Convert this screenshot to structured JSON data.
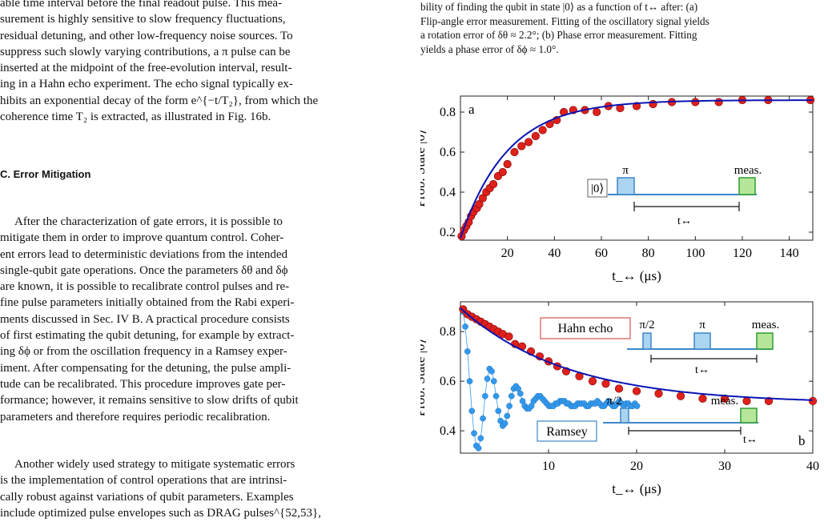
{
  "left_column": {
    "para_top": [
      "able time interval before the final readout pulse. This mea-",
      "surement is highly sensitive to slow frequency fluctuations,",
      "residual detuning, and other low-frequency noise sources. To",
      "suppress such slowly varying contributions, a π pulse can be",
      "inserted at the midpoint of the free-evolution interval, result-",
      "ing in a Hahn echo experiment. The echo signal typically ex-",
      "hibits an exponential decay of the form e^{−t/T₂}, from which the",
      "coherence time T₂ is extracted, as illustrated in Fig. 16b."
    ],
    "section_heading": "C.  Error Mitigation",
    "para_mitigation": [
      "After the characterization of gate errors, it is possible to",
      "mitigate them in order to improve quantum control. Coher-",
      "ent errors lead to deterministic deviations from the intended",
      "single-qubit gate operations. Once the parameters δθ and δϕ",
      "are known, it is possible to recalibrate control pulses and re-",
      "fine pulse parameters initially obtained from the Rabi experi-",
      "ments discussed in Sec. IV B. A practical procedure consists",
      "of first estimating the qubit detuning, for example by extract-",
      "ing δϕ or from the oscillation frequency in a Ramsey exper-",
      "iment. After compensating for the detuning, the pulse ampli-",
      "tude can be recalibrated. This procedure improves gate per-",
      "formance; however, it remains sensitive to slow drifts of qubit",
      "parameters and therefore requires periodic recalibration."
    ],
    "para_strategy": [
      "Another widely used strategy to mitigate systematic errors",
      "is the implementation of control operations that are intrinsi-",
      "cally robust against variations of qubit parameters. Examples",
      "include optimized pulse envelopes such as DRAG pulses^{52,53},"
    ]
  },
  "caption": [
    "bility of finding the qubit in state |0⟩ as a function of t↔ after: (a)",
    "Flip-angle error measurement. Fitting of the oscillatory signal yields",
    "a rotation error of δθ ≈ 2.2°; (b) Phase error measurement. Fitting",
    "yields a phase error of δϕ ≈ 1.0°."
  ],
  "colors": {
    "data_red": "#e0201a",
    "fit_blue": "#0a14b4",
    "ramsey_blue": "#3399ee",
    "pulse_blue": "#aad4f0",
    "pulse_edge": "#3d87c9",
    "pulse_green": "#b6e69a",
    "pulse_green_edge": "#2f9e2f",
    "hahn_box_edge": "#d9534f",
    "ramsey_box_edge": "#3d87c9"
  },
  "chart_data": [
    {
      "type": "scatter",
      "panel_label": "a",
      "title": "",
      "xlabel": "t_↔ (μs)",
      "ylabel": "Prob. State |0⟩",
      "xlim": [
        0,
        150
      ],
      "ylim": [
        0.16,
        0.88
      ],
      "xticks": [
        20,
        40,
        60,
        80,
        100,
        120,
        140
      ],
      "yticks": [
        0.2,
        0.4,
        0.6,
        0.8
      ],
      "grid": false,
      "series": [
        {
          "x": [
            0.5,
            1.5,
            2.5,
            3.5,
            4.5,
            5.5,
            7,
            8,
            9.5,
            11,
            12.5,
            14,
            16,
            18,
            20,
            23,
            26,
            29,
            32,
            35,
            38,
            41,
            44,
            48,
            53,
            58,
            63,
            68,
            75,
            82,
            90,
            100,
            110,
            120,
            131,
            149
          ],
          "values": [
            0.18,
            0.21,
            0.23,
            0.25,
            0.28,
            0.3,
            0.32,
            0.34,
            0.37,
            0.4,
            0.42,
            0.44,
            0.48,
            0.5,
            0.54,
            0.6,
            0.63,
            0.65,
            0.68,
            0.71,
            0.74,
            0.76,
            0.8,
            0.81,
            0.81,
            0.8,
            0.83,
            0.82,
            0.83,
            0.84,
            0.85,
            0.85,
            0.85,
            0.86,
            0.86,
            0.86
          ]
        }
      ],
      "fit": {
        "type": "exponential",
        "plateau": 0.86,
        "start": 0.17,
        "tau": 20
      },
      "inset": {
        "state_label": "|0⟩",
        "pulse_label": "π",
        "meas_label": "meas.",
        "time_label": "t↔"
      }
    },
    {
      "type": "scatter",
      "panel_label": "b",
      "title": "",
      "xlabel": "t_↔ (μs)",
      "ylabel": "Prob. State |0⟩",
      "xlim": [
        0,
        40
      ],
      "ylim": [
        0.31,
        0.92
      ],
      "xticks": [
        10,
        20,
        30,
        40
      ],
      "yticks": [
        0.4,
        0.6,
        0.8
      ],
      "grid": false,
      "legend": [
        "Hahn echo",
        "Ramsey"
      ],
      "series": [
        {
          "x": [
            0.3,
            0.8,
            1.3,
            1.8,
            2.3,
            2.8,
            3.3,
            3.8,
            4.3,
            4.8,
            5.5,
            6.2,
            7,
            8,
            9,
            10,
            11,
            12,
            13.5,
            15,
            16.5,
            18,
            20,
            22.5,
            25,
            27.5,
            30,
            32.5,
            35,
            40
          ],
          "values": [
            0.89,
            0.87,
            0.86,
            0.85,
            0.84,
            0.83,
            0.82,
            0.81,
            0.8,
            0.79,
            0.78,
            0.75,
            0.74,
            0.72,
            0.7,
            0.68,
            0.66,
            0.64,
            0.62,
            0.6,
            0.59,
            0.57,
            0.56,
            0.55,
            0.54,
            0.53,
            0.53,
            0.52,
            0.52,
            0.52
          ]
        },
        {
          "x": [
            0.3,
            0.55,
            0.8,
            1.05,
            1.3,
            1.55,
            1.8,
            2.05,
            2.3,
            2.55,
            2.8,
            3.05,
            3.3,
            3.55,
            3.8,
            4.05,
            4.3,
            4.55,
            4.8,
            5.05,
            5.3,
            5.55,
            5.8,
            6.05,
            6.3,
            6.55,
            6.8,
            7.05,
            7.3,
            7.55,
            7.8,
            8.05,
            8.3,
            8.55,
            8.8,
            9.05,
            9.3,
            9.55,
            9.8,
            10.05,
            10.3,
            10.55,
            10.8,
            11.05,
            11.3,
            11.55,
            11.8,
            12.05,
            12.3,
            12.55,
            12.8,
            13.05,
            13.3,
            13.55,
            13.8,
            14.05,
            14.3,
            14.55,
            14.8,
            15.05,
            15.3,
            15.55,
            15.8,
            16.05,
            16.3,
            16.55,
            16.8,
            17.05,
            17.3,
            17.55,
            17.8,
            18.05,
            18.3,
            18.55,
            18.8,
            19.05,
            19.3,
            19.55,
            19.8,
            20.05
          ],
          "values": [
            0.88,
            0.82,
            0.72,
            0.6,
            0.48,
            0.39,
            0.34,
            0.33,
            0.37,
            0.45,
            0.54,
            0.61,
            0.65,
            0.64,
            0.6,
            0.54,
            0.48,
            0.44,
            0.42,
            0.43,
            0.46,
            0.5,
            0.54,
            0.57,
            0.58,
            0.57,
            0.55,
            0.52,
            0.5,
            0.49,
            0.49,
            0.5,
            0.52,
            0.53,
            0.54,
            0.54,
            0.53,
            0.52,
            0.51,
            0.5,
            0.5,
            0.5,
            0.51,
            0.51,
            0.52,
            0.52,
            0.52,
            0.51,
            0.51,
            0.5,
            0.5,
            0.5,
            0.51,
            0.51,
            0.51,
            0.51,
            0.5,
            0.5,
            0.51,
            0.51,
            0.51,
            0.52,
            0.51,
            0.5,
            0.5,
            0.51,
            0.52,
            0.51,
            0.5,
            0.5,
            0.51,
            0.52,
            0.51,
            0.5,
            0.51,
            0.51,
            0.5,
            0.5,
            0.51,
            0.5
          ]
        }
      ],
      "fit": {
        "type": "exponential",
        "plateau": 0.51,
        "start": 0.895,
        "tau": 12
      },
      "inset_echo": {
        "pulse1_label": "π/2",
        "pulse2_label": "π",
        "meas_label": "meas.",
        "time_label": "t↔"
      },
      "inset_ramsey": {
        "pulse1_label": "π/2",
        "meas_label": "meas.",
        "time_label": "t↔"
      }
    }
  ]
}
